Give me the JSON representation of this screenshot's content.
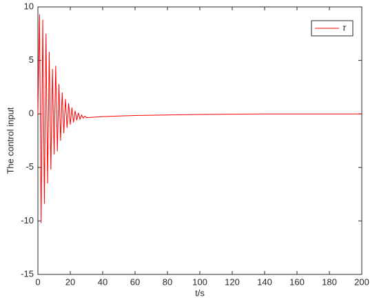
{
  "chart_data": {
    "type": "line",
    "xlabel": "t/s",
    "ylabel": "The control input",
    "x": [
      0,
      1,
      2,
      3,
      4,
      5,
      6,
      7,
      8,
      9,
      10,
      11,
      12,
      13,
      14,
      15,
      16,
      17,
      18,
      19,
      20,
      21,
      22,
      23,
      24,
      25,
      26,
      27,
      28,
      29,
      30,
      35,
      40,
      50,
      60,
      80,
      100,
      120,
      140,
      160,
      180,
      200
    ],
    "series": [
      {
        "name": "τ",
        "color": "#ff0000",
        "values": [
          0,
          9.3,
          -10.2,
          8.8,
          -8.4,
          7.5,
          -6.5,
          5.8,
          -5.2,
          4.2,
          -3.8,
          4.5,
          -3.5,
          2.8,
          -2.5,
          2.0,
          -1.8,
          1.4,
          -1.3,
          1.0,
          -1.0,
          0.6,
          -0.8,
          0.3,
          -0.6,
          0.1,
          -0.5,
          -0.1,
          -0.4,
          -0.2,
          -0.35,
          -0.3,
          -0.25,
          -0.2,
          -0.15,
          -0.1,
          -0.05,
          -0.03,
          0,
          0,
          0,
          0
        ]
      }
    ],
    "xlim": [
      0,
      200
    ],
    "xticks": [
      0,
      20,
      40,
      60,
      80,
      100,
      120,
      140,
      160,
      180,
      200
    ],
    "ylim": [
      -15,
      10
    ],
    "yticks": [
      -15,
      -10,
      -5,
      0,
      5,
      10
    ],
    "legend": "upper right"
  }
}
